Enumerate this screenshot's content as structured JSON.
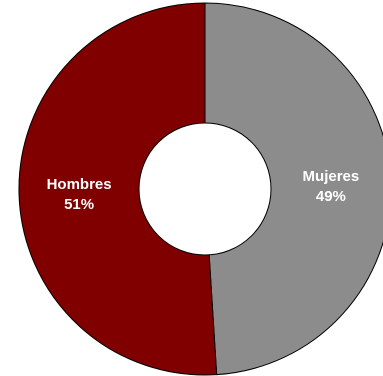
{
  "chart_data": {
    "type": "pie",
    "variant": "donut",
    "legend": "none",
    "title": "",
    "slices": [
      {
        "label": "Mujeres",
        "value": 49,
        "value_label": "49%",
        "color": "#8c8c8c"
      },
      {
        "label": "Hombres",
        "value": 51,
        "value_label": "51%",
        "color": "#800000"
      }
    ],
    "start_angle_deg": 0,
    "direction": "clockwise",
    "outline_color": "#000000",
    "hole_color": "#ffffff"
  }
}
